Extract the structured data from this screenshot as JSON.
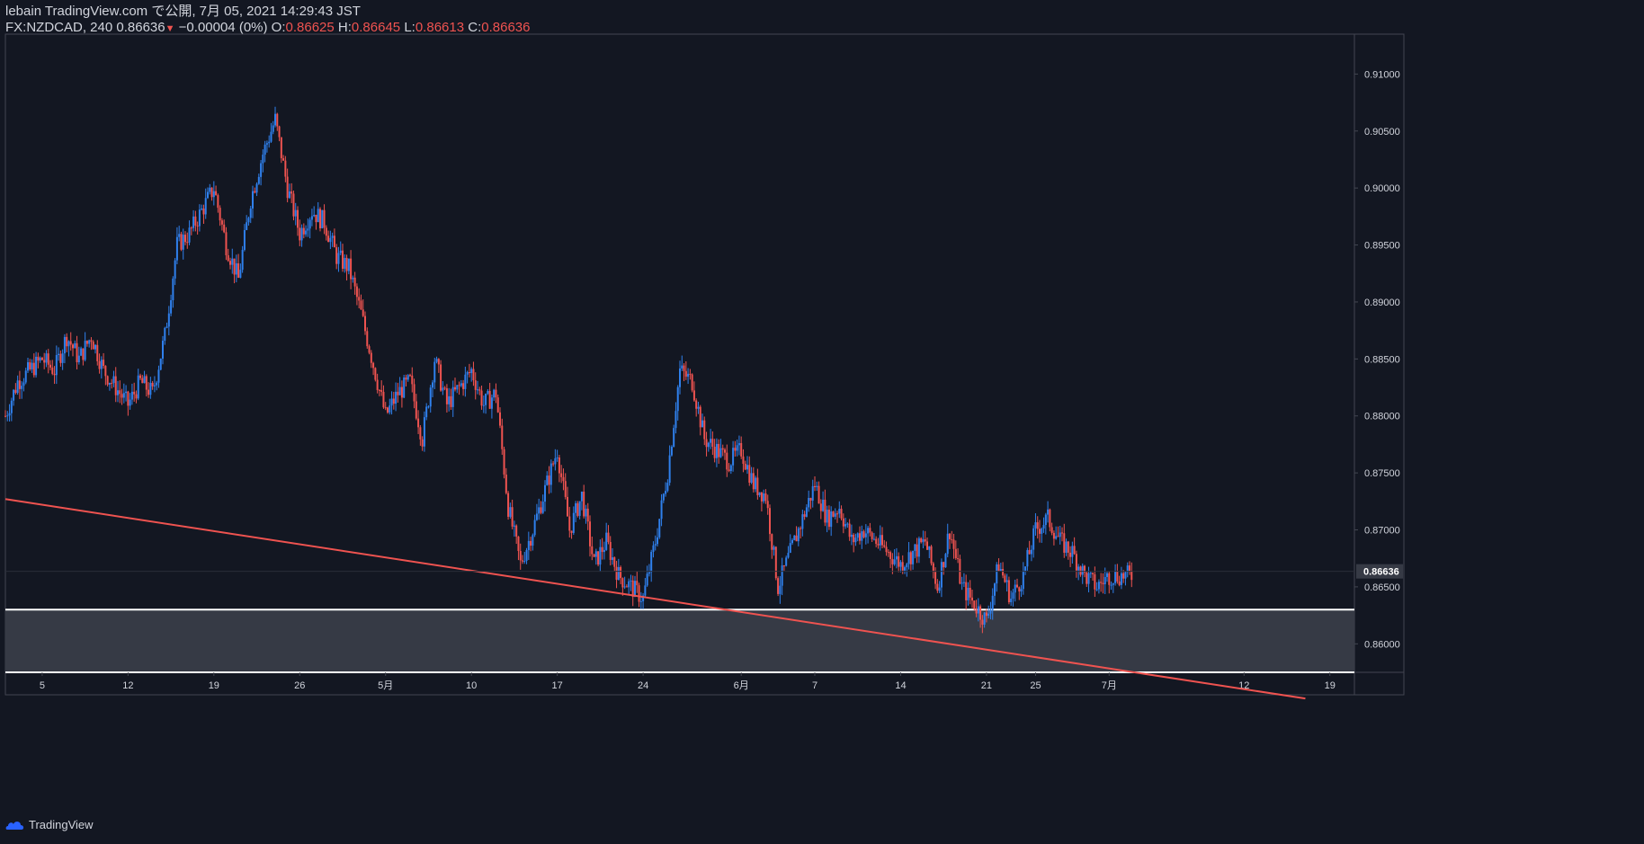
{
  "header": {
    "line1": "lebain TradingView.com で公開, 7月 05, 2021 14:29:43 JST",
    "symbol": "FX:NZDCAD, 240",
    "last": "0.86636",
    "change": "−0.00004 (0%)",
    "o_label": "O:",
    "o_value": "0.86625",
    "h_label": "H:",
    "h_value": "0.86645",
    "l_label": "L:",
    "l_value": "0.86613",
    "c_label": "C:",
    "c_value": "0.86636"
  },
  "footer": {
    "brand": "TradingView"
  },
  "colors": {
    "background": "#131722",
    "up": "#2f80ed",
    "down": "#ef5350",
    "trendline": "#ef5350",
    "zone_fill": "#363a45",
    "zone_border": "#ffffff"
  },
  "chart_data": {
    "type": "candlestick",
    "interval": "240",
    "y_ticks": [
      "0.86000",
      "0.86500",
      "0.87000",
      "0.87500",
      "0.88000",
      "0.88500",
      "0.89000",
      "0.89500",
      "0.90000",
      "0.90500",
      "0.91000"
    ],
    "ylim": [
      0.8575,
      0.9135
    ],
    "x_ticks": [
      {
        "label": "5",
        "date": "2021-04-05"
      },
      {
        "label": "12",
        "date": "2021-04-12"
      },
      {
        "label": "19",
        "date": "2021-04-19"
      },
      {
        "label": "26",
        "date": "2021-04-26"
      },
      {
        "label": "5月",
        "date": "2021-05-03"
      },
      {
        "label": "10",
        "date": "2021-05-10"
      },
      {
        "label": "17",
        "date": "2021-05-17"
      },
      {
        "label": "24",
        "date": "2021-05-24"
      },
      {
        "label": "6月",
        "date": "2021-06-01"
      },
      {
        "label": "7",
        "date": "2021-06-07"
      },
      {
        "label": "14",
        "date": "2021-06-14"
      },
      {
        "label": "21",
        "date": "2021-06-21"
      },
      {
        "label": "25",
        "date": "2021-06-25"
      },
      {
        "label": "7月",
        "date": "2021-07-01"
      },
      {
        "label": "12",
        "date": "2021-07-12"
      },
      {
        "label": "19",
        "date": "2021-07-19"
      }
    ],
    "last_price_label": "0.86636",
    "last_price": 0.86636,
    "price_path": [
      [
        "2021-04-02",
        0.88
      ],
      [
        "2021-04-03",
        0.883
      ],
      [
        "2021-04-05",
        0.885
      ],
      [
        "2021-04-06",
        0.884
      ],
      [
        "2021-04-07",
        0.887
      ],
      [
        "2021-04-08",
        0.885
      ],
      [
        "2021-04-09",
        0.887
      ],
      [
        "2021-04-10",
        0.884
      ],
      [
        "2021-04-12",
        0.881
      ],
      [
        "2021-04-13",
        0.883
      ],
      [
        "2021-04-14",
        0.882
      ],
      [
        "2021-04-15",
        0.887
      ],
      [
        "2021-04-16",
        0.895
      ],
      [
        "2021-04-17",
        0.896
      ],
      [
        "2021-04-19",
        0.9
      ],
      [
        "2021-04-20",
        0.895
      ],
      [
        "2021-04-21",
        0.892
      ],
      [
        "2021-04-22",
        0.899
      ],
      [
        "2021-04-23",
        0.903
      ],
      [
        "2021-04-24",
        0.906
      ],
      [
        "2021-04-25",
        0.9
      ],
      [
        "2021-04-26",
        0.896
      ],
      [
        "2021-04-27",
        0.898
      ],
      [
        "2021-04-28",
        0.897
      ],
      [
        "2021-04-29",
        0.894
      ],
      [
        "2021-04-30",
        0.893
      ],
      [
        "2021-05-01",
        0.889
      ],
      [
        "2021-05-03",
        0.88
      ],
      [
        "2021-05-04",
        0.882
      ],
      [
        "2021-05-05",
        0.883
      ],
      [
        "2021-05-06",
        0.878
      ],
      [
        "2021-05-07",
        0.885
      ],
      [
        "2021-05-08",
        0.881
      ],
      [
        "2021-05-10",
        0.884
      ],
      [
        "2021-05-11",
        0.881
      ],
      [
        "2021-05-12",
        0.882
      ],
      [
        "2021-05-13",
        0.872
      ],
      [
        "2021-05-14",
        0.867
      ],
      [
        "2021-05-15",
        0.87
      ],
      [
        "2021-05-17",
        0.877
      ],
      [
        "2021-05-18",
        0.87
      ],
      [
        "2021-05-19",
        0.873
      ],
      [
        "2021-05-20",
        0.867
      ],
      [
        "2021-05-21",
        0.869
      ],
      [
        "2021-05-22",
        0.866
      ],
      [
        "2021-05-24",
        0.864
      ],
      [
        "2021-05-25",
        0.869
      ],
      [
        "2021-05-26",
        0.875
      ],
      [
        "2021-05-27",
        0.884
      ],
      [
        "2021-05-28",
        0.883
      ],
      [
        "2021-05-29",
        0.878
      ],
      [
        "2021-05-31",
        0.876
      ],
      [
        "2021-06-01",
        0.877
      ],
      [
        "2021-06-02",
        0.874
      ],
      [
        "2021-06-03",
        0.873
      ],
      [
        "2021-06-04",
        0.865
      ],
      [
        "2021-06-05",
        0.868
      ],
      [
        "2021-06-07",
        0.874
      ],
      [
        "2021-06-08",
        0.871
      ],
      [
        "2021-06-09",
        0.872
      ],
      [
        "2021-06-10",
        0.869
      ],
      [
        "2021-06-11",
        0.87
      ],
      [
        "2021-06-12",
        0.869
      ],
      [
        "2021-06-14",
        0.867
      ],
      [
        "2021-06-15",
        0.868
      ],
      [
        "2021-06-16",
        0.869
      ],
      [
        "2021-06-17",
        0.865
      ],
      [
        "2021-06-18",
        0.87
      ],
      [
        "2021-06-19",
        0.865
      ],
      [
        "2021-06-21",
        0.862
      ],
      [
        "2021-06-22",
        0.867
      ],
      [
        "2021-06-23",
        0.864
      ],
      [
        "2021-06-24",
        0.866
      ],
      [
        "2021-06-25",
        0.87
      ],
      [
        "2021-06-26",
        0.871
      ],
      [
        "2021-06-27",
        0.869
      ],
      [
        "2021-06-28",
        0.868
      ],
      [
        "2021-06-29",
        0.866
      ],
      [
        "2021-06-30",
        0.865
      ],
      [
        "2021-07-01",
        0.866
      ],
      [
        "2021-07-02",
        0.866
      ],
      [
        "2021-07-03",
        0.866
      ]
    ],
    "support_zone": {
      "upper": 0.863,
      "lower": 0.8575
    },
    "trendline": {
      "start": [
        "2021-04-02",
        0.8727
      ],
      "end": [
        "2021-07-17",
        0.8552
      ]
    }
  }
}
